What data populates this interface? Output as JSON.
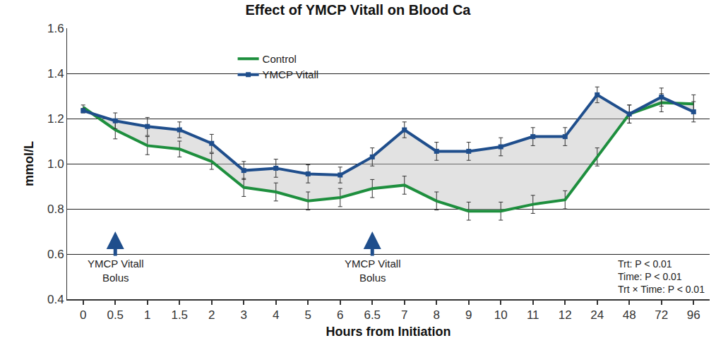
{
  "chart_data": {
    "type": "line",
    "title": "Effect of YMCP Vitall on Blood Ca",
    "x_label": "Hours from Initiation",
    "y_label": "mmol/L",
    "categories": [
      "0",
      "0.5",
      "1",
      "1.5",
      "2",
      "3",
      "4",
      "5",
      "6",
      "6.5",
      "7",
      "8",
      "9",
      "10",
      "11",
      "12",
      "24",
      "48",
      "72",
      "96"
    ],
    "series": [
      {
        "name": "Control",
        "color": "#1e8f3e",
        "marker": "none",
        "line_style": "solid",
        "values": [
          1.25,
          1.15,
          1.08,
          1.065,
          1.01,
          0.895,
          0.875,
          0.835,
          0.85,
          0.89,
          0.905,
          0.835,
          0.79,
          0.79,
          0.82,
          0.84,
          1.03,
          1.22,
          1.27,
          1.265
        ],
        "errors": [
          0.01,
          0.04,
          0.04,
          0.035,
          0.035,
          0.04,
          0.04,
          0.04,
          0.04,
          0.04,
          0.04,
          0.04,
          0.04,
          0.04,
          0.04,
          0.04,
          0.04,
          0.04,
          0.04,
          0.04
        ]
      },
      {
        "name": "YMCP Vitall",
        "color": "#1f4e8c",
        "marker": "square",
        "line_style": "solid",
        "values": [
          1.235,
          1.19,
          1.165,
          1.15,
          1.09,
          0.97,
          0.98,
          0.955,
          0.95,
          1.03,
          1.15,
          1.055,
          1.055,
          1.075,
          1.12,
          1.12,
          1.305,
          1.22,
          1.295,
          1.23
        ],
        "errors": [
          0.01,
          0.035,
          0.04,
          0.035,
          0.04,
          0.04,
          0.04,
          0.04,
          0.035,
          0.04,
          0.035,
          0.04,
          0.04,
          0.04,
          0.04,
          0.04,
          0.035,
          0.04,
          0.04,
          0.045
        ]
      }
    ],
    "ylim": [
      0.4,
      1.6
    ],
    "yticks": [
      0.4,
      0.6,
      0.8,
      {
        "value": 1,
        "label": "1.0"
      },
      1.2,
      1.4,
      1.6
    ],
    "grid": true,
    "legend": "top",
    "annotations": [
      {
        "text": "YMCP Vitall\nBolus",
        "x": "0.5"
      },
      {
        "text": "YMCP Vitall\nBolus",
        "x": "6.5"
      }
    ],
    "stats": [
      "Trt: P < 0.01",
      "Time: P < 0.01",
      "Trt × Time: P < 0.01"
    ]
  }
}
